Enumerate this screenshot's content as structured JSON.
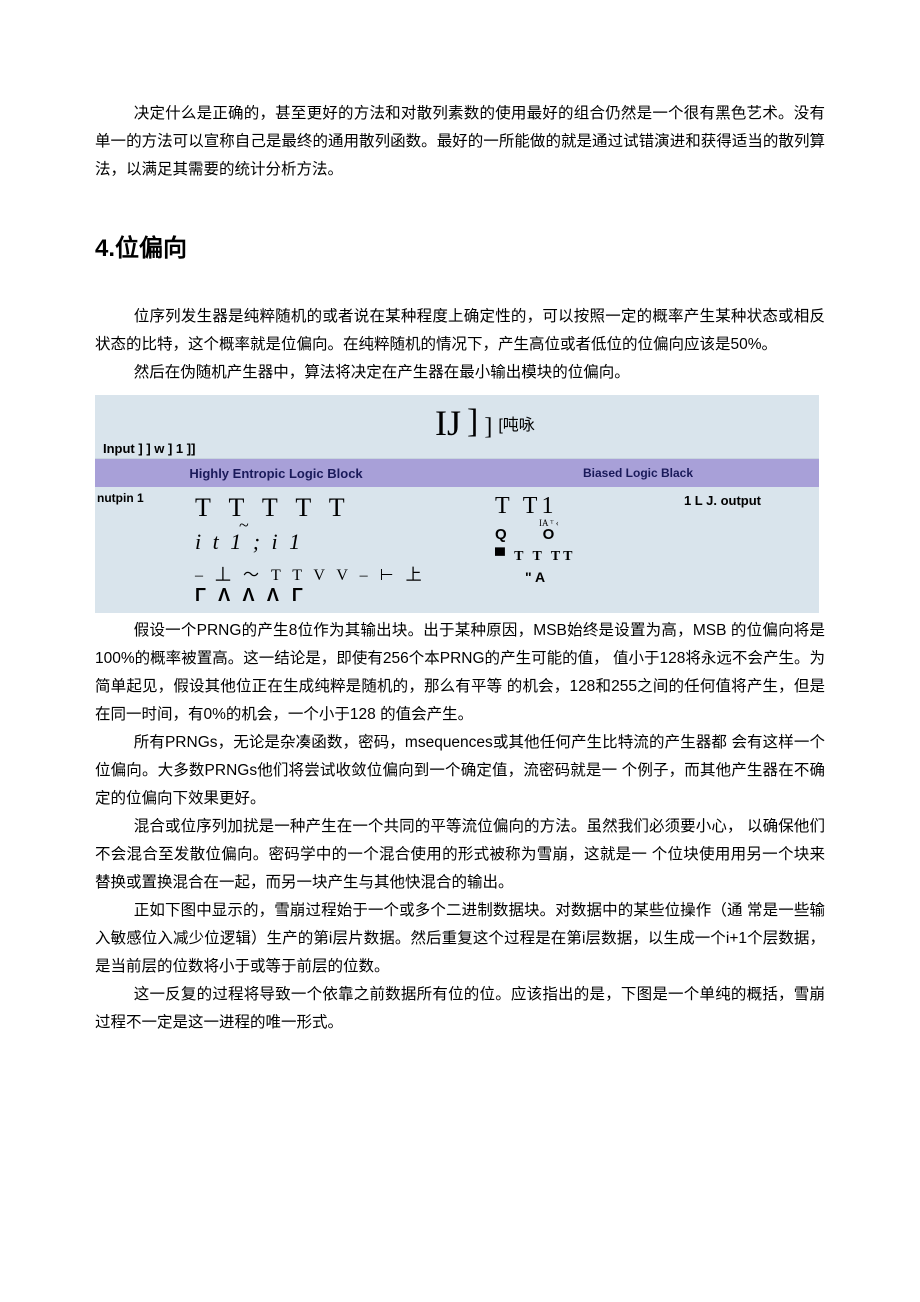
{
  "intro": {
    "p1": "决定什么是正确的，甚至更好的方法和对散列素数的使用最好的组合仍然是一个很有黑色艺术。没有单一的方法可以宣称自己是最终的通用散列函数。最好的一所能做的就是通过试错演进和获得适当的散列算法，以满足其需要的统计分析方法。"
  },
  "heading": "4.位偏向",
  "section": {
    "p1": "位序列发生器是纯粹随机的或者说在某种程度上确定性的，可以按照一定的概率产生某种状态或相反状态的比特，这个概率就是位偏向。在纯粹随机的情况下，产生高位或者低位的位偏向应该是50%。",
    "p2": "然后在伪随机产生器中，算法将决定在产生器在最小输出模块的位偏向。"
  },
  "diagram": {
    "top_input": "Input ] ] w ] 1 ]]",
    "ij": "IJ",
    "bracket1": "]",
    "bracket2": "]",
    "tunyong": "[吨咏",
    "band_left": "Highly Entropic Logic Block",
    "band_right": "Biased  Logic Black",
    "nutpin": "nutpin 1",
    "output": "1 L J. output",
    "left_r1": "T T T T T",
    "left_r2": "i t  1 ; i  1",
    "left_r3": "– 丄 ～  T T  V V –  ⊢ 上",
    "left_r4": "Γ  Λ Λ Λ  Γ",
    "right_r1": "T  T1",
    "right_ia": "IA ᵀ ‹",
    "right_q": "Q",
    "right_o": "O",
    "right_r3": "▀  T  T  TT",
    "right_r4": "\" A"
  },
  "after": {
    "p1": "假设一个PRNG的产生8位作为其输出块。出于某种原因，MSB始终是设置为高，MSB 的位偏向将是100%的概率被置高。这一结论是，即使有256个本PRNG的产生可能的值， 值小于128将永远不会产生。为简单起见，假设其他位正在生成纯粹是随机的，那么有平等 的机会，128和255之间的任何值将产生，但是在同一时间，有0%的机会，一个小于128 的值会产生。",
    "p2": "所有PRNGs，无论是杂凑函数，密码，msequences或其他任何产生比特流的产生器都 会有这样一个位偏向。大多数PRNGs他们将尝试收敛位偏向到一个确定值，流密码就是一 个例子，而其他产生器在不确定的位偏向下效果更好。",
    "p3": "混合或位序列加扰是一种产生在一个共同的平等流位偏向的方法。虽然我们必须要小心， 以确保他们不会混合至发散位偏向。密码学中的一个混合使用的形式被称为雪崩，这就是一 个位块使用用另一个块来替换或置换混合在一起，而另一块产生与其他快混合的输出。",
    "p4": "正如下图中显示的，雪崩过程始于一个或多个二进制数据块。对数据中的某些位操作（通 常是一些输入敏感位入减少位逻辑）生产的第i层片数据。然后重复这个过程是在第i层数据，以生成一个i+1个层数据，是当前层的位数将小于或等于前层的位数。",
    "p5": "这一反复的过程将导致一个依靠之前数据所有位的位。应该指出的是，下图是一个单纯的概括，雪崩过程不一定是这一进程的唯一形式。"
  }
}
